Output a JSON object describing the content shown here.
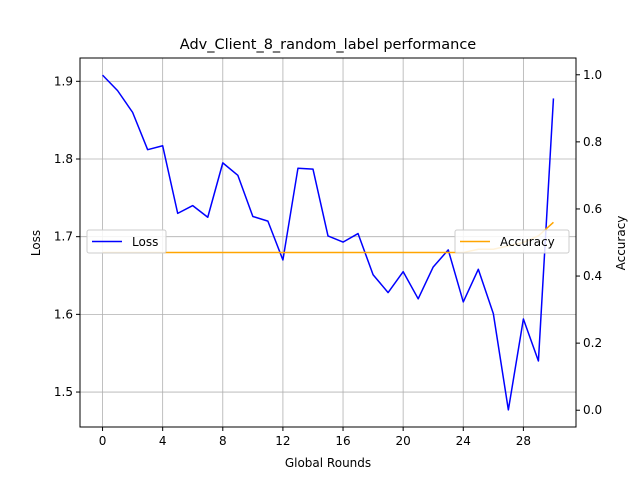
{
  "chart_data": {
    "type": "line",
    "title": "Adv_Client_8_random_label performance",
    "xlabel": "Global Rounds",
    "ylabel_left": "Loss",
    "ylabel_right": "Accuracy",
    "grid": true,
    "xlim": [
      -1.5,
      31.5
    ],
    "ylim_left": [
      1.455,
      1.93
    ],
    "ylim_right": [
      -0.05,
      1.05
    ],
    "x_ticks": [
      0,
      4,
      8,
      12,
      16,
      20,
      24,
      28
    ],
    "y_ticks_left": [
      1.5,
      1.6,
      1.7,
      1.8,
      1.9
    ],
    "y_ticks_right": [
      0.0,
      0.2,
      0.4,
      0.6,
      0.8,
      1.0
    ],
    "x": [
      0,
      1,
      2,
      3,
      4,
      5,
      6,
      7,
      8,
      9,
      10,
      11,
      12,
      13,
      14,
      15,
      16,
      17,
      18,
      19,
      20,
      21,
      22,
      23,
      24,
      25,
      26,
      27,
      28,
      29,
      30
    ],
    "series": [
      {
        "name": "Loss",
        "axis": "left",
        "color": "#0000ff",
        "legend_position": "center-left",
        "values": [
          1.908,
          1.888,
          1.86,
          1.812,
          1.817,
          1.73,
          1.74,
          1.725,
          1.795,
          1.779,
          1.726,
          1.72,
          1.67,
          1.788,
          1.787,
          1.701,
          1.693,
          1.704,
          1.651,
          1.628,
          1.655,
          1.62,
          1.661,
          1.683,
          1.616,
          1.658,
          1.601,
          1.477,
          1.594,
          1.54,
          1.878
        ]
      },
      {
        "name": "Accuracy",
        "axis": "right",
        "color": "#ffa500",
        "legend_position": "center-right",
        "values": [
          0.47,
          0.47,
          0.47,
          0.47,
          0.47,
          0.47,
          0.47,
          0.47,
          0.47,
          0.47,
          0.47,
          0.47,
          0.47,
          0.47,
          0.47,
          0.47,
          0.47,
          0.47,
          0.47,
          0.47,
          0.47,
          0.47,
          0.47,
          0.47,
          0.47,
          0.48,
          0.48,
          0.49,
          0.5,
          0.52,
          0.56
        ]
      }
    ]
  }
}
